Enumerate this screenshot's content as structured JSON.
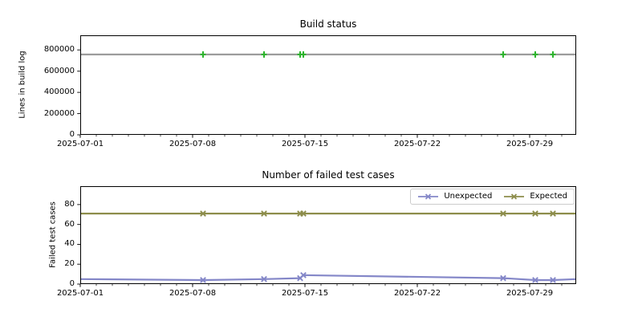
{
  "figure": {
    "background": "#ffffff",
    "spine_color": "#000000",
    "text_color": "#000000"
  },
  "chart_data": [
    {
      "type": "line",
      "title": "Build status",
      "ylabel": "Lines in build log",
      "x_axis": {
        "range_days": [
          0,
          30.9
        ],
        "minor_tick_days": 1,
        "ticks": [
          {
            "day": 0,
            "label": "2025-07-01"
          },
          {
            "day": 7,
            "label": "2025-07-08"
          },
          {
            "day": 14,
            "label": "2025-07-15"
          },
          {
            "day": 21,
            "label": "2025-07-22"
          },
          {
            "day": 28,
            "label": "2025-07-29"
          }
        ]
      },
      "y_axis": {
        "range": [
          0,
          938000
        ],
        "ticks": [
          {
            "value": 0,
            "label": "0"
          },
          {
            "value": 200000,
            "label": "200000"
          },
          {
            "value": 400000,
            "label": "400000"
          },
          {
            "value": 600000,
            "label": "600000"
          },
          {
            "value": 800000,
            "label": "800000"
          }
        ]
      },
      "legend": null,
      "series": [
        {
          "key": "build-log-lines",
          "name": "Lines in build log",
          "line_color": "#9c9c9c",
          "marker": "plus",
          "marker_color": "#2cb52c",
          "points": [
            {
              "day": 0,
              "value": 757000,
              "marker": false
            },
            {
              "day": 7.65,
              "value": 757000,
              "marker": true
            },
            {
              "day": 11.45,
              "value": 757000,
              "marker": true
            },
            {
              "day": 13.7,
              "value": 757000,
              "marker": true
            },
            {
              "day": 13.9,
              "value": 757000,
              "marker": true
            },
            {
              "day": 26.35,
              "value": 757000,
              "marker": true
            },
            {
              "day": 28.35,
              "value": 757000,
              "marker": true
            },
            {
              "day": 29.45,
              "value": 757000,
              "marker": true
            },
            {
              "day": 30.9,
              "value": 757000,
              "marker": false
            }
          ]
        }
      ]
    },
    {
      "type": "line",
      "title": "Number of failed test cases",
      "ylabel": "Failed test cases",
      "x_axis": {
        "range_days": [
          0,
          30.9
        ],
        "minor_tick_days": 1,
        "ticks": [
          {
            "day": 0,
            "label": "2025-07-01"
          },
          {
            "day": 7,
            "label": "2025-07-08"
          },
          {
            "day": 14,
            "label": "2025-07-15"
          },
          {
            "day": 21,
            "label": "2025-07-22"
          },
          {
            "day": 28,
            "label": "2025-07-29"
          }
        ]
      },
      "y_axis": {
        "range": [
          0,
          98.5
        ],
        "ticks": [
          {
            "value": 0,
            "label": "0"
          },
          {
            "value": 20,
            "label": "20"
          },
          {
            "value": 40,
            "label": "40"
          },
          {
            "value": 60,
            "label": "60"
          },
          {
            "value": 80,
            "label": "80"
          }
        ]
      },
      "legend": {
        "position": "upper-right"
      },
      "series": [
        {
          "key": "unexpected",
          "name": "Unexpected",
          "line_color": "#8487c8",
          "marker": "x",
          "marker_color": "#8487c8",
          "points": [
            {
              "day": 0,
              "value": 5,
              "marker": false
            },
            {
              "day": 7.65,
              "value": 4,
              "marker": true
            },
            {
              "day": 11.45,
              "value": 5,
              "marker": true
            },
            {
              "day": 13.7,
              "value": 6,
              "marker": true
            },
            {
              "day": 13.9,
              "value": 9,
              "marker": true
            },
            {
              "day": 26.35,
              "value": 6,
              "marker": true
            },
            {
              "day": 28.35,
              "value": 4,
              "marker": true
            },
            {
              "day": 29.45,
              "value": 4,
              "marker": true
            },
            {
              "day": 30.9,
              "value": 5,
              "marker": false
            }
          ]
        },
        {
          "key": "expected",
          "name": "Expected",
          "line_color": "#8d8d4b",
          "marker": "x",
          "marker_color": "#8d8d4b",
          "points": [
            {
              "day": 0,
              "value": 71,
              "marker": false
            },
            {
              "day": 7.65,
              "value": 71,
              "marker": true
            },
            {
              "day": 11.45,
              "value": 71,
              "marker": true
            },
            {
              "day": 13.7,
              "value": 71,
              "marker": true
            },
            {
              "day": 13.9,
              "value": 71,
              "marker": true
            },
            {
              "day": 26.35,
              "value": 71,
              "marker": true
            },
            {
              "day": 28.35,
              "value": 71,
              "marker": true
            },
            {
              "day": 29.45,
              "value": 71,
              "marker": true
            },
            {
              "day": 30.9,
              "value": 71,
              "marker": false
            }
          ]
        }
      ]
    }
  ]
}
